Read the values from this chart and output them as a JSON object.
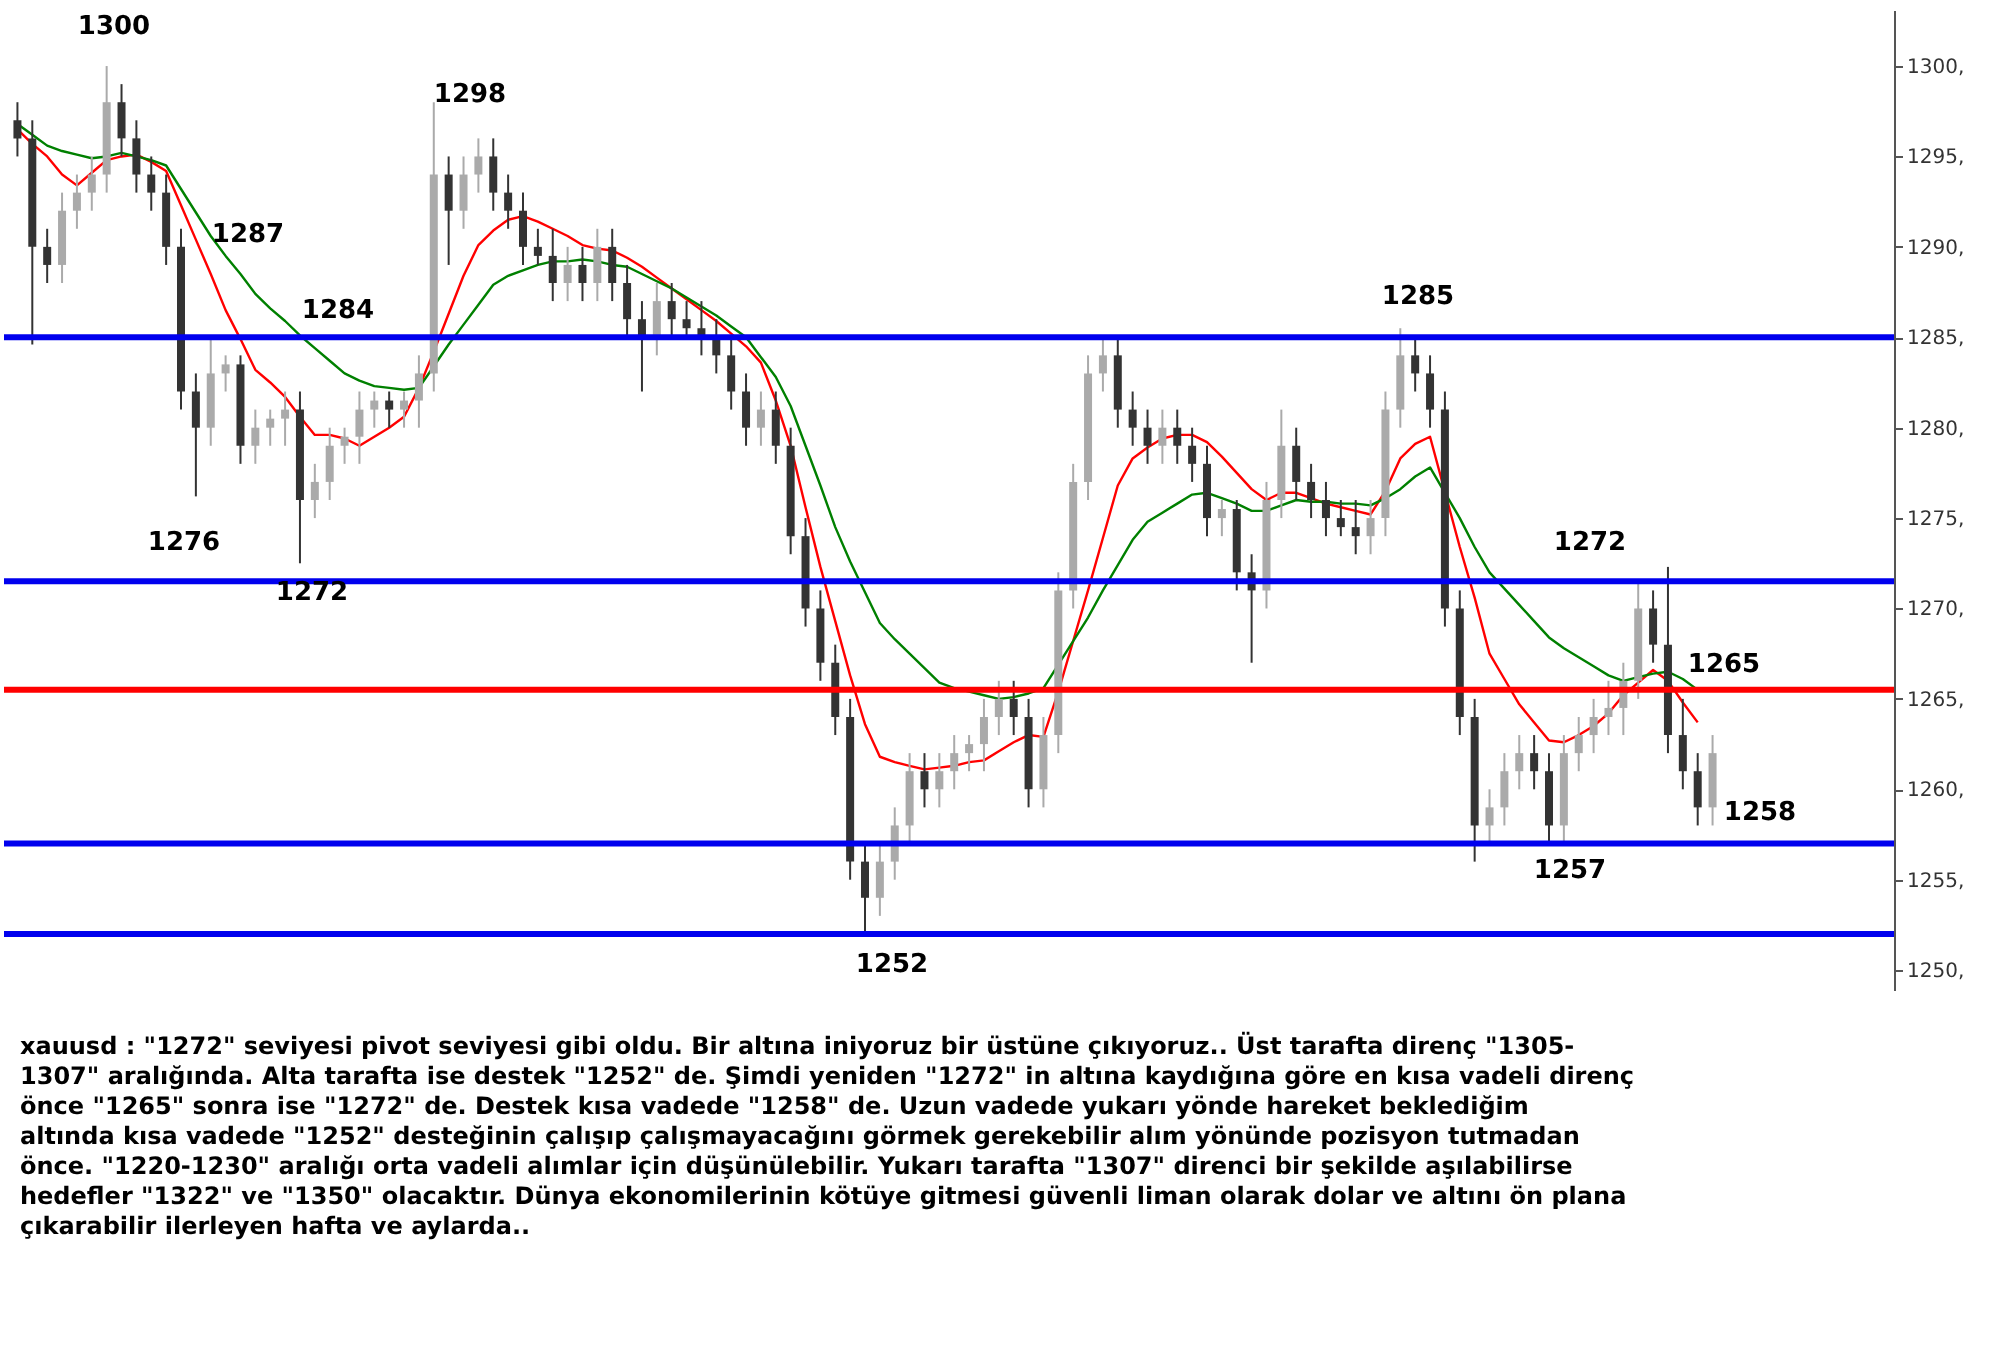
{
  "chart_data": {
    "type": "candlestick",
    "categories": [
      null,
      null,
      null,
      null,
      null,
      null,
      null,
      null,
      null,
      null,
      null,
      null,
      null,
      null,
      null,
      null,
      null,
      null,
      null,
      null,
      null,
      null,
      null,
      null,
      null,
      null,
      null,
      null,
      null,
      null,
      null,
      null,
      null,
      null,
      null,
      null,
      null,
      null,
      null,
      null,
      null,
      null,
      null,
      null,
      null,
      null,
      null,
      null,
      null,
      null,
      null,
      null,
      null,
      null,
      null,
      null,
      null,
      null,
      null,
      null,
      null,
      null,
      null,
      null,
      null,
      null,
      null,
      null,
      null,
      null,
      null,
      null,
      null,
      null,
      null,
      null,
      null,
      null,
      null,
      null,
      null,
      null,
      null,
      null,
      null,
      null,
      null,
      null,
      null,
      null,
      null,
      null,
      null,
      null,
      null,
      null,
      null,
      null,
      null,
      null,
      null,
      null,
      null,
      null,
      null,
      null,
      null,
      null,
      null,
      null,
      null,
      null,
      null,
      null,
      null
    ],
    "series": [
      {
        "colors": [
          "#333333",
          "#333333",
          "#333333",
          "#aaaaaa",
          "#aaaaaa",
          "#aaaaaa",
          "#aaaaaa",
          "#333333",
          "#333333",
          "#333333",
          "#333333",
          "#333333",
          "#333333",
          "#aaaaaa",
          "#aaaaaa",
          "#333333",
          "#aaaaaa",
          "#aaaaaa",
          "#aaaaaa",
          "#333333",
          "#aaaaaa",
          "#aaaaaa",
          "#aaaaaa",
          "#aaaaaa",
          "#aaaaaa",
          "#333333",
          "#aaaaaa",
          "#aaaaaa",
          "#aaaaaa",
          "#333333",
          "#aaaaaa",
          "#aaaaaa",
          "#333333",
          "#333333",
          "#333333",
          "#333333",
          "#333333",
          "#aaaaaa",
          "#333333",
          "#aaaaaa",
          "#333333",
          "#333333",
          "#333333",
          "#aaaaaa",
          "#333333",
          "#333333",
          "#333333",
          "#333333",
          "#333333",
          "#333333",
          "#aaaaaa",
          "#333333",
          "#333333",
          "#333333",
          "#333333",
          "#333333",
          "#333333",
          "#333333",
          "#aaaaaa",
          "#aaaaaa",
          "#aaaaaa",
          "#333333",
          "#aaaaaa",
          "#aaaaaa",
          "#aaaaaa",
          "#aaaaaa",
          "#aaaaaa",
          "#333333",
          "#333333",
          "#aaaaaa",
          "#aaaaaa",
          "#aaaaaa",
          "#aaaaaa",
          "#aaaaaa",
          "#333333",
          "#333333",
          "#333333",
          "#aaaaaa",
          "#333333",
          "#333333",
          "#333333",
          "#aaaaaa",
          "#333333",
          "#333333",
          "#aaaaaa",
          "#aaaaaa",
          "#333333",
          "#333333",
          "#333333",
          "#333333",
          "#333333",
          "#aaaaaa",
          "#aaaaaa",
          "#aaaaaa",
          "#333333",
          "#333333",
          "#333333",
          "#333333",
          "#333333",
          "#aaaaaa",
          "#aaaaaa",
          "#aaaaaa",
          "#333333",
          "#333333",
          "#aaaaaa",
          "#aaaaaa",
          "#aaaaaa",
          "#aaaaaa",
          "#aaaaaa",
          "#aaaaaa",
          "#333333",
          "#333333",
          "#333333",
          "#333333",
          "#aaaaaa"
        ],
        "ohlc": [
          [
            1297,
            1298,
            1295,
            1296
          ],
          [
            1296,
            1297,
            1284.6,
            1290
          ],
          [
            1290,
            1291,
            1288,
            1289
          ],
          [
            1289,
            1293,
            1288,
            1292
          ],
          [
            1292,
            1294,
            1291,
            1293
          ],
          [
            1293,
            1295,
            1292,
            1294
          ],
          [
            1294,
            1300,
            1293,
            1298
          ],
          [
            1298,
            1299,
            1295,
            1296
          ],
          [
            1296,
            1297,
            1293,
            1294
          ],
          [
            1294,
            1295,
            1292,
            1293
          ],
          [
            1293,
            1294,
            1289,
            1290
          ],
          [
            1290,
            1291,
            1281,
            1282
          ],
          [
            1282,
            1283,
            1276.2,
            1280
          ],
          [
            1280,
            1285,
            1279,
            1283
          ],
          [
            1283,
            1284,
            1282,
            1283.5
          ],
          [
            1283.5,
            1284,
            1278,
            1279
          ],
          [
            1279,
            1281,
            1278,
            1280
          ],
          [
            1280,
            1281,
            1279,
            1280.5
          ],
          [
            1280.5,
            1282,
            1279,
            1281
          ],
          [
            1281,
            1282,
            1272.5,
            1276
          ],
          [
            1276,
            1278,
            1275,
            1277
          ],
          [
            1277,
            1280,
            1276,
            1279
          ],
          [
            1279,
            1280,
            1278,
            1279.5
          ],
          [
            1279.5,
            1282,
            1278,
            1281
          ],
          [
            1281,
            1282,
            1280,
            1281.5
          ],
          [
            1281.5,
            1282,
            1280,
            1281
          ],
          [
            1281,
            1282,
            1280,
            1281.5
          ],
          [
            1281.5,
            1284,
            1280,
            1283
          ],
          [
            1283,
            1298,
            1282,
            1294
          ],
          [
            1294,
            1295,
            1289,
            1292
          ],
          [
            1292,
            1295,
            1291,
            1294
          ],
          [
            1294,
            1296,
            1293,
            1295
          ],
          [
            1295,
            1296,
            1292,
            1293
          ],
          [
            1293,
            1294,
            1291,
            1292
          ],
          [
            1292,
            1293,
            1289,
            1290
          ],
          [
            1290,
            1291,
            1289,
            1289.5
          ],
          [
            1289.5,
            1291,
            1287,
            1288
          ],
          [
            1288,
            1290,
            1287,
            1289
          ],
          [
            1289,
            1290,
            1287,
            1288
          ],
          [
            1288,
            1291,
            1287,
            1290
          ],
          [
            1290,
            1291,
            1287,
            1288
          ],
          [
            1288,
            1289,
            1285,
            1286
          ],
          [
            1286,
            1287,
            1282,
            1285
          ],
          [
            1285,
            1288,
            1284,
            1287
          ],
          [
            1287,
            1288,
            1285,
            1286
          ],
          [
            1286,
            1287,
            1285,
            1285.5
          ],
          [
            1285.5,
            1287,
            1284,
            1285
          ],
          [
            1285,
            1286,
            1283,
            1284
          ],
          [
            1284,
            1285,
            1281,
            1282
          ],
          [
            1282,
            1283,
            1279,
            1280
          ],
          [
            1280,
            1282,
            1279,
            1281
          ],
          [
            1281,
            1282,
            1278,
            1279
          ],
          [
            1279,
            1280,
            1273,
            1274
          ],
          [
            1274,
            1275,
            1269,
            1270
          ],
          [
            1270,
            1271,
            1266,
            1267
          ],
          [
            1267,
            1268,
            1263,
            1264
          ],
          [
            1264,
            1265,
            1255,
            1256
          ],
          [
            1256,
            1257,
            1252,
            1254
          ],
          [
            1254,
            1257,
            1253,
            1256
          ],
          [
            1256,
            1259,
            1255,
            1258
          ],
          [
            1258,
            1262,
            1257,
            1261
          ],
          [
            1261,
            1262,
            1259,
            1260
          ],
          [
            1260,
            1262,
            1259,
            1261
          ],
          [
            1261,
            1263,
            1260,
            1262
          ],
          [
            1262,
            1263,
            1261,
            1262.5
          ],
          [
            1262.5,
            1265,
            1261,
            1264
          ],
          [
            1264,
            1266,
            1263,
            1265
          ],
          [
            1265,
            1266,
            1263,
            1264
          ],
          [
            1264,
            1265,
            1259,
            1260
          ],
          [
            1260,
            1264,
            1259,
            1263
          ],
          [
            1263,
            1272,
            1262,
            1271
          ],
          [
            1271,
            1278,
            1270,
            1277
          ],
          [
            1277,
            1284,
            1276,
            1283
          ],
          [
            1283,
            1285,
            1282,
            1284
          ],
          [
            1284,
            1285,
            1280,
            1281
          ],
          [
            1281,
            1282,
            1279,
            1280
          ],
          [
            1280,
            1281,
            1278,
            1279
          ],
          [
            1279,
            1281,
            1278,
            1280
          ],
          [
            1280,
            1281,
            1278,
            1279
          ],
          [
            1279,
            1280,
            1277,
            1278
          ],
          [
            1278,
            1279,
            1274,
            1275
          ],
          [
            1275,
            1276,
            1274,
            1275.5
          ],
          [
            1275.5,
            1276,
            1271,
            1272
          ],
          [
            1272,
            1273,
            1267,
            1271
          ],
          [
            1271,
            1277,
            1270,
            1276
          ],
          [
            1276,
            1281,
            1275,
            1279
          ],
          [
            1279,
            1280,
            1276,
            1277
          ],
          [
            1277,
            1278,
            1275,
            1276
          ],
          [
            1276,
            1277,
            1274,
            1275
          ],
          [
            1275,
            1276,
            1274,
            1274.5
          ],
          [
            1274.5,
            1276,
            1273,
            1274
          ],
          [
            1274,
            1276,
            1273,
            1275
          ],
          [
            1275,
            1282,
            1274,
            1281
          ],
          [
            1281,
            1285.5,
            1280,
            1284
          ],
          [
            1284,
            1285,
            1282,
            1283
          ],
          [
            1283,
            1284,
            1280,
            1281
          ],
          [
            1281,
            1282,
            1269,
            1270
          ],
          [
            1270,
            1271,
            1263,
            1264
          ],
          [
            1264,
            1265,
            1256,
            1258
          ],
          [
            1258,
            1260,
            1257,
            1259
          ],
          [
            1259,
            1262,
            1258,
            1261
          ],
          [
            1261,
            1263,
            1260,
            1262
          ],
          [
            1262,
            1263,
            1260,
            1261
          ],
          [
            1261,
            1262,
            1257,
            1258
          ],
          [
            1258,
            1263,
            1257,
            1262
          ],
          [
            1262,
            1264,
            1261,
            1263
          ],
          [
            1263,
            1265,
            1262,
            1264
          ],
          [
            1264,
            1266,
            1263,
            1264.5
          ],
          [
            1264.5,
            1267,
            1263,
            1266
          ],
          [
            1266,
            1271.5,
            1265,
            1270
          ],
          [
            1270,
            1271,
            1267,
            1268
          ],
          [
            1268,
            1272.3,
            1262,
            1263
          ],
          [
            1263,
            1265,
            1260,
            1261
          ],
          [
            1261,
            1262,
            1258,
            1259
          ],
          [
            1259,
            1263,
            1258,
            1262
          ]
        ]
      },
      {
        "type": "line",
        "color": "#ff0000",
        "values": [
          1296.5,
          1295.7,
          1295,
          1294,
          1293.4,
          1294.1,
          1294.8,
          1295,
          1295.1,
          1294.7,
          1294.2,
          1292.3,
          1290.4,
          1288.5,
          1286.5,
          1284.9,
          1283.2,
          1282.5,
          1281.7,
          1280.6,
          1279.6,
          1279.6,
          1279.4,
          1279,
          1279.5,
          1280,
          1280.6,
          1282.2,
          1284.2,
          null,
          1288.4,
          1290.1,
          1290.9,
          1291.5,
          1291.7,
          1291.4,
          1291,
          1290.6,
          1290.1,
          1289.9,
          1289.8,
          1289.4,
          1288.9,
          1288.3,
          1287.7,
          1287.1,
          1286.5,
          1285.9,
          1285.2,
          1284.5,
          1283.6,
          1281.5,
          1279,
          1275.6,
          1272.3,
          1269.3,
          1266.3,
          1263.6,
          1261.8,
          1261.5,
          1261.3,
          1261.1,
          1261.2,
          1261.3,
          1261.5,
          1261.6,
          1262.1,
          1262.6,
          1263,
          1262.9,
          1265.4,
          1268.2,
          1271,
          1273.9,
          1276.8,
          1278.3,
          1278.9,
          1279.4,
          1279.6,
          1279.6,
          1279.2,
          1278.4,
          1277.5,
          1276.6,
          1276,
          1276.4,
          1276.4,
          1276.1,
          1275.8,
          1275.6,
          1275.4,
          1275.2,
          1276.5,
          1278.3,
          1279.1,
          1279.5,
          null,
          1273.4,
          1270.6,
          1267.5,
          1266.1,
          1264.7,
          1263.7,
          1262.7,
          1262.6,
          1263,
          1263.5,
          1264.2,
          1265.2,
          1265.9,
          1266.6,
          1266,
          1264.8,
          1263.7,
          null
        ]
      },
      {
        "type": "line",
        "color": "#008000",
        "values": [
          1296.8,
          1296.2,
          1295.6,
          1295.3,
          1295.1,
          1294.9,
          1295,
          1295.2,
          1295,
          1294.8,
          1294.5,
          1293.2,
          1291.9,
          1290.6,
          1289.5,
          1288.5,
          1287.4,
          1286.6,
          1285.9,
          1285.1,
          1284.4,
          1283.7,
          1283,
          1282.6,
          1282.3,
          1282.2,
          1282.1,
          1282.2,
          1283.4,
          1284.6,
          1285.7,
          1286.8,
          1287.9,
          1288.4,
          1288.7,
          1289,
          1289.2,
          1289.2,
          1289.3,
          1289.2,
          1289,
          1288.9,
          1288.5,
          1288.1,
          1287.7,
          1287.2,
          1286.7,
          1286.2,
          1285.6,
          1285,
          1283.9,
          1282.8,
          1281.2,
          1279,
          1276.8,
          1274.5,
          1272.6,
          1270.9,
          1269.2,
          1268.3,
          1267.5,
          1266.7,
          1265.9,
          1265.6,
          1265.4,
          1265.2,
          1265,
          1265.1,
          1265.3,
          1265.6,
          1266.9,
          1268.2,
          1269.5,
          1271,
          1272.4,
          1273.8,
          1274.8,
          1275.3,
          1275.8,
          1276.3,
          1276.4,
          1276.1,
          1275.8,
          1275.4,
          1275.4,
          1275.7,
          1276,
          1275.9,
          1275.9,
          1275.8,
          1275.8,
          1275.7,
          1276.1,
          1276.6,
          1277.3,
          1277.8,
          1276.4,
          1275,
          1273.4,
          1272,
          1271.1,
          1270.2,
          1269.3,
          1268.4,
          1267.8,
          1267.3,
          1266.8,
          1266.3,
          1266,
          1266.2,
          1266.4,
          1266.5,
          1266.1,
          1265.5,
          null
        ]
      }
    ],
    "ylim": [
      1248.9,
      1303.1
    ],
    "yticks": [
      {
        "value": 1250,
        "label": "1250,"
      },
      {
        "value": 1255,
        "label": "1255,"
      },
      {
        "value": 1260,
        "label": "1260,"
      },
      {
        "value": 1265,
        "label": "1265,"
      },
      {
        "value": 1270,
        "label": "1270,"
      },
      {
        "value": 1275,
        "label": "1275,"
      },
      {
        "value": 1280,
        "label": "1280,"
      },
      {
        "value": 1285,
        "label": "1285,"
      },
      {
        "value": 1290,
        "label": "1290,"
      },
      {
        "value": 1295,
        "label": "1295,"
      },
      {
        "value": 1300,
        "label": "1300,"
      }
    ],
    "tick_labels": "y",
    "grid": false,
    "ref_lines": [
      {
        "axis": "y",
        "value": 1285,
        "color": "#0000ee"
      },
      {
        "axis": "y",
        "value": 1271.5,
        "color": "#0000ee"
      },
      {
        "axis": "y",
        "value": 1265.5,
        "color": "#ff0000"
      },
      {
        "axis": "y",
        "value": 1257,
        "color": "#0000ee"
      },
      {
        "axis": "y",
        "value": 1252,
        "color": "#0000ee"
      }
    ],
    "annotations": [
      "1300",
      "1298",
      "1287",
      "1284",
      "1276",
      "1272",
      "1252",
      "1285",
      "1272",
      "1265",
      "1257",
      "1258",
      "xauusd : \"1272\" seviyesi pivot seviyesi gibi oldu. Bir altına iniyoruz bir üstüne çıkıyoruz.. Üst tarafta direnç \"1305-\n1307\" aralığında. Alta tarafta ise destek \"1252\" de. Şimdi yeniden \"1272\" in altına kaydığına göre en kısa vadeli direnç\nönce \"1265\" sonra ise \"1272\" de. Destek kısa vadede \"1258\" de. Uzun vadede yukarı yönde hareket beklediğim\naltında kısa vadede \"1252\" desteğinin çalışıp çalışmayacağını görmek gerekebilir alım yönünde pozisyon tutmadan\nönce. \"1220-1230\" aralığı orta vadeli alımlar için düşünülebilir. Yukarı tarafta \"1307\" direnci bir şekilde aşılabilirse\nhedefler \"1322\" ve \"1350\" olacaktır. Dünya ekonomilerinin kötüye gitmesi güvenli liman olarak dolar ve altını ön plana\nçıkarabilir ilerleyen hafta ve aylarda.."
    ]
  }
}
